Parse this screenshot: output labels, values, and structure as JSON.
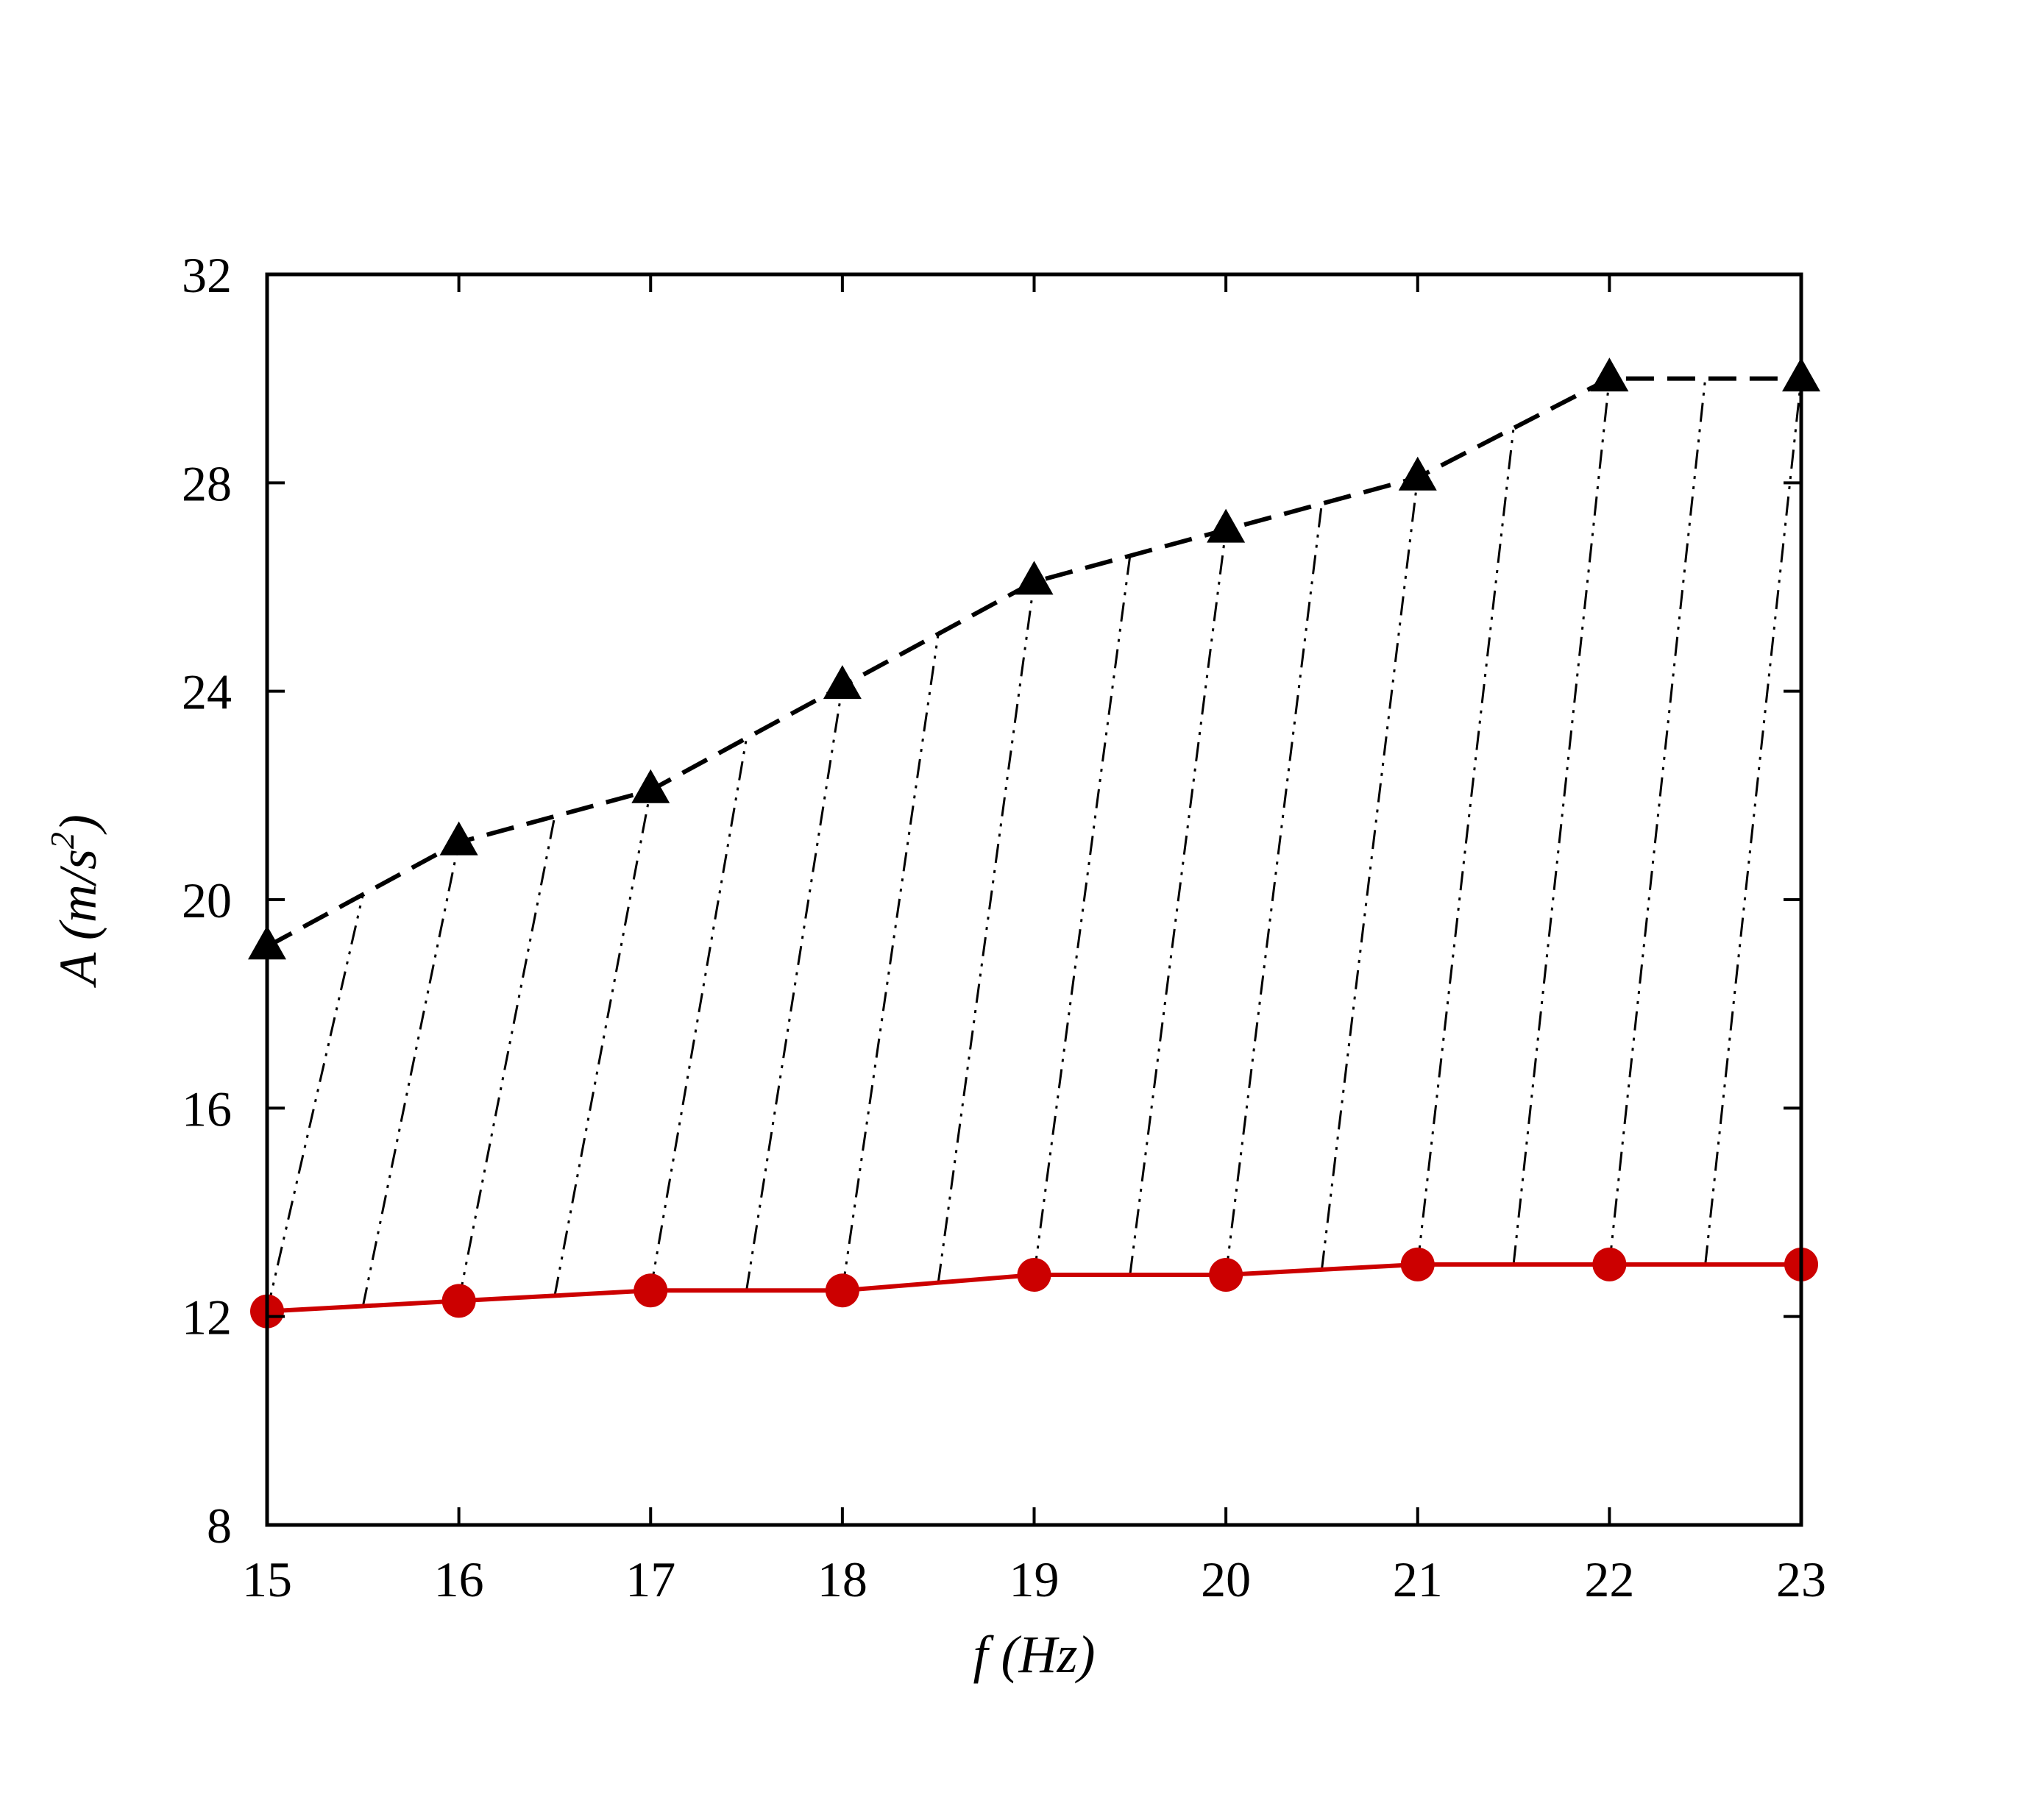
{
  "chart_data": {
    "type": "line",
    "title": "",
    "xlabel": "f (Hz)",
    "ylabel": "A (m/s2)",
    "xlabel_parts": {
      "var": "f",
      "unit": "(Hz)"
    },
    "ylabel_parts": {
      "var": "A",
      "unit_pre": "(m/s",
      "unit_sup": "2",
      "unit_post": ")"
    },
    "xlim": [
      15,
      23
    ],
    "ylim": [
      8,
      32
    ],
    "xticks": [
      15,
      16,
      17,
      18,
      19,
      20,
      21,
      22,
      23
    ],
    "yticks": [
      8,
      12,
      16,
      20,
      24,
      28,
      32
    ],
    "grid": false,
    "legend": "none",
    "x": [
      15,
      16,
      17,
      18,
      19,
      20,
      21,
      22,
      23
    ],
    "series": [
      {
        "values": [
          19.1,
          21.1,
          22.1,
          24.1,
          26.1,
          27.1,
          28.1,
          30.0,
          30.0
        ],
        "color": "#000000",
        "line_style": "dashed",
        "marker": "triangle"
      },
      {
        "values": [
          12.1,
          12.3,
          12.5,
          12.5,
          12.8,
          12.8,
          13.0,
          13.0,
          13.0
        ],
        "color": "#cc0000",
        "line_style": "solid",
        "marker": "circle"
      }
    ],
    "shaded_region": {
      "between_series": [
        0,
        1
      ],
      "pattern": "dash-dot hatch"
    }
  }
}
